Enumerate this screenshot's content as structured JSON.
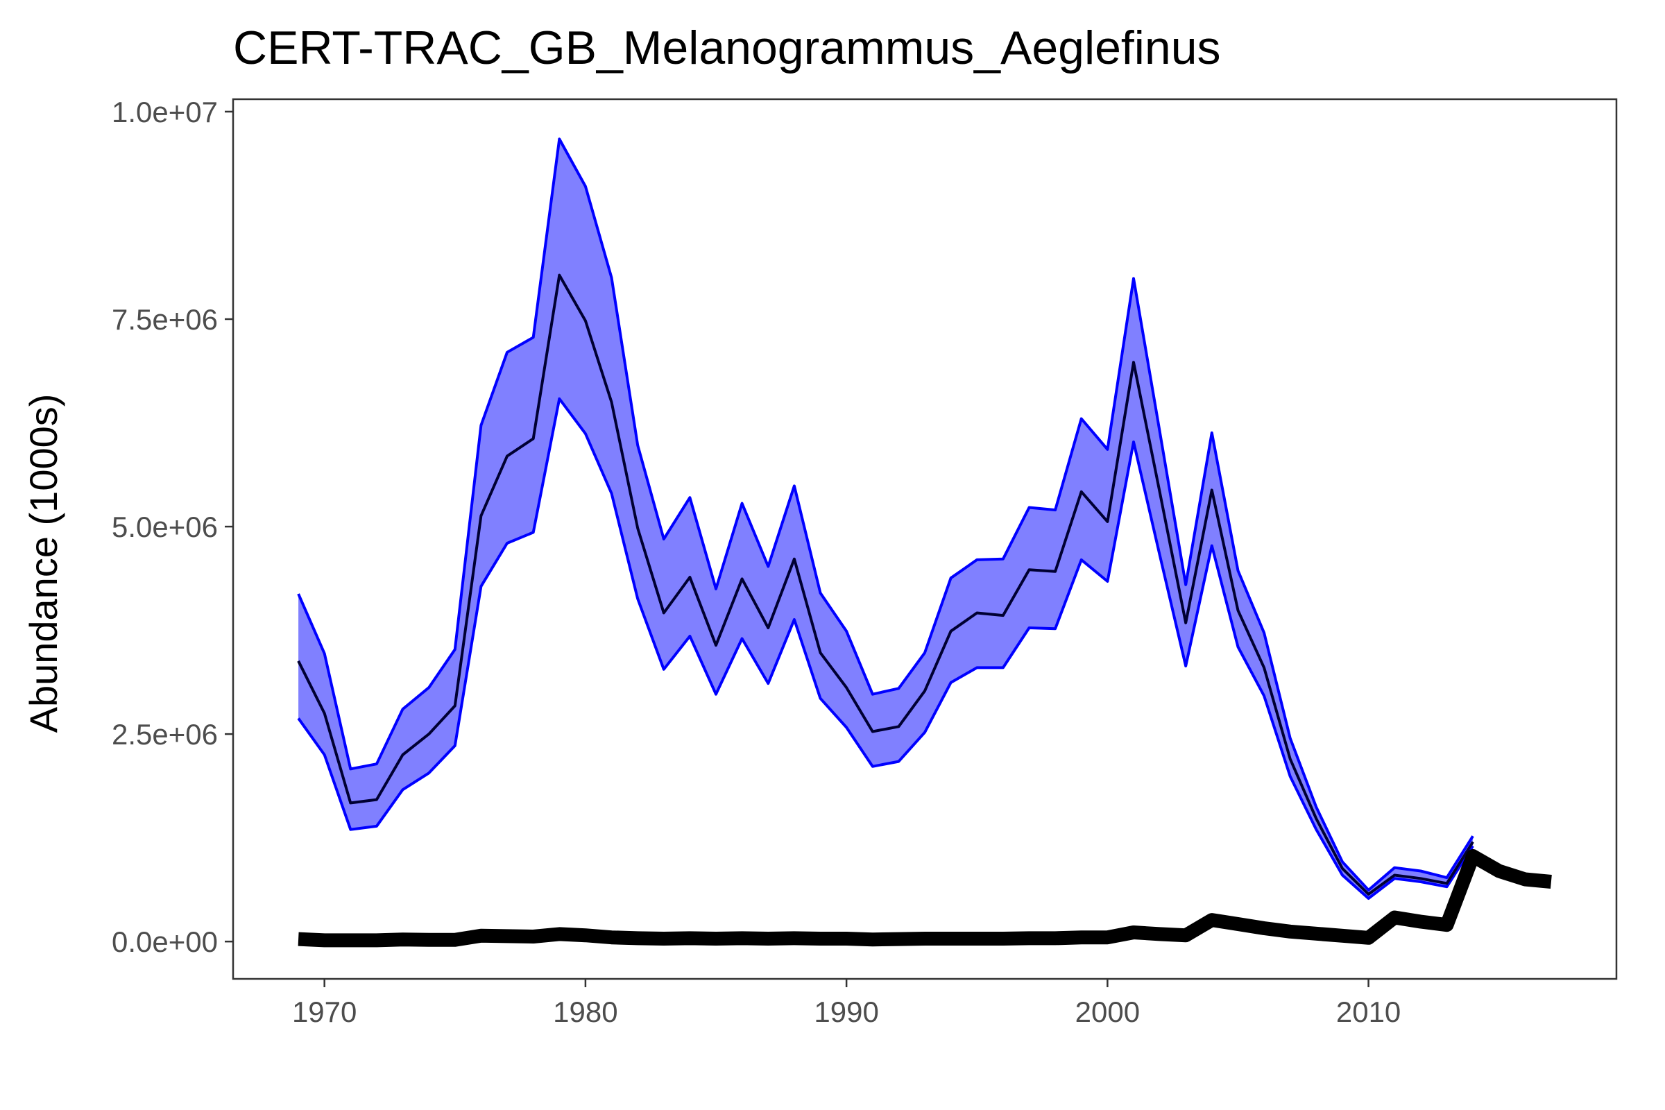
{
  "chart_data": {
    "type": "line",
    "title": "CERT-TRAC_GB_Melanogrammus_Aeglefinus",
    "xlabel": "",
    "ylabel": "Abundance (1000s)",
    "xlim": [
      1966.5,
      2019.5
    ],
    "ylim": [
      -450000,
      10150000
    ],
    "x_ticks": [
      1970,
      1980,
      1990,
      2000,
      2010
    ],
    "x_tick_labels": [
      "1970",
      "1980",
      "1990",
      "2000",
      "2010"
    ],
    "y_ticks": [
      0,
      2500000,
      5000000,
      7500000,
      10000000
    ],
    "y_tick_labels": [
      "0.0e+00",
      "2.5e+06",
      "5.0e+06",
      "7.5e+06",
      "1.0e+07"
    ],
    "grid": false,
    "legend": "none",
    "colors": {
      "band_fill": "#8080ff",
      "band_edge": "#0000ff",
      "estimate_line": "#000033",
      "catch_line": "#000000",
      "panel_border": "#333333",
      "tick_label": "#4d4d4d"
    },
    "series": [
      {
        "role": "estimate",
        "x": [
          1969,
          1970,
          1971,
          1972,
          1973,
          1974,
          1975,
          1976,
          1977,
          1978,
          1979,
          1980,
          1981,
          1982,
          1983,
          1984,
          1985,
          1986,
          1987,
          1988,
          1989,
          1990,
          1991,
          1992,
          1993,
          1994,
          1995,
          1996,
          1997,
          1998,
          1999,
          2000,
          2001,
          2002,
          2003,
          2004,
          2005,
          2006,
          2007,
          2008,
          2009,
          2010,
          2011,
          2012,
          2013,
          2014
        ],
        "y": [
          3380000,
          2750000,
          1670000,
          1710000,
          2250000,
          2500000,
          2840000,
          5130000,
          5850000,
          6060000,
          8030000,
          7480000,
          6500000,
          4980000,
          3960000,
          4390000,
          3570000,
          4370000,
          3780000,
          4610000,
          3480000,
          3060000,
          2530000,
          2590000,
          3020000,
          3740000,
          3960000,
          3930000,
          4480000,
          4460000,
          5420000,
          5060000,
          6980000,
          5420000,
          3840000,
          5440000,
          3990000,
          3300000,
          2200000,
          1480000,
          880000,
          570000,
          800000,
          760000,
          700000,
          1200000
        ]
      },
      {
        "role": "lower",
        "x": [
          1969,
          1970,
          1971,
          1972,
          1973,
          1974,
          1975,
          1976,
          1977,
          1978,
          1979,
          1980,
          1981,
          1982,
          1983,
          1984,
          1985,
          1986,
          1987,
          1988,
          1989,
          1990,
          1991,
          1992,
          1993,
          1994,
          1995,
          1996,
          1997,
          1998,
          1999,
          2000,
          2001,
          2002,
          2003,
          2004,
          2005,
          2006,
          2007,
          2008,
          2009,
          2010,
          2011,
          2012,
          2013,
          2014
        ],
        "y": [
          2690000,
          2250000,
          1350000,
          1390000,
          1830000,
          2030000,
          2360000,
          4280000,
          4800000,
          4930000,
          6540000,
          6120000,
          5400000,
          4130000,
          3280000,
          3680000,
          2980000,
          3650000,
          3110000,
          3880000,
          2930000,
          2580000,
          2110000,
          2170000,
          2520000,
          3120000,
          3300000,
          3300000,
          3780000,
          3770000,
          4600000,
          4340000,
          6020000,
          4660000,
          3320000,
          4770000,
          3550000,
          2960000,
          1990000,
          1350000,
          800000,
          520000,
          760000,
          720000,
          660000,
          1150000
        ]
      },
      {
        "role": "upper",
        "x": [
          1969,
          1970,
          1971,
          1972,
          1973,
          1974,
          1975,
          1976,
          1977,
          1978,
          1979,
          1980,
          1981,
          1982,
          1983,
          1984,
          1985,
          1986,
          1987,
          1988,
          1989,
          1990,
          1991,
          1992,
          1993,
          1994,
          1995,
          1996,
          1997,
          1998,
          1999,
          2000,
          2001,
          2002,
          2003,
          2004,
          2005,
          2006,
          2007,
          2008,
          2009,
          2010,
          2011,
          2012,
          2013,
          2014
        ],
        "y": [
          4190000,
          3470000,
          2080000,
          2140000,
          2800000,
          3060000,
          3520000,
          6220000,
          7100000,
          7280000,
          9670000,
          9100000,
          8000000,
          5980000,
          4850000,
          5350000,
          4250000,
          5280000,
          4520000,
          5490000,
          4200000,
          3740000,
          2980000,
          3050000,
          3480000,
          4380000,
          4600000,
          4610000,
          5230000,
          5200000,
          6300000,
          5930000,
          7990000,
          6150000,
          4300000,
          6130000,
          4470000,
          3720000,
          2450000,
          1620000,
          960000,
          620000,
          890000,
          850000,
          770000,
          1270000
        ]
      },
      {
        "role": "catch",
        "x": [
          1969,
          1970,
          1971,
          1972,
          1973,
          1974,
          1975,
          1976,
          1977,
          1978,
          1979,
          1980,
          1981,
          1982,
          1983,
          1984,
          1985,
          1986,
          1987,
          1988,
          1989,
          1990,
          1991,
          1992,
          1993,
          1994,
          1995,
          1996,
          1997,
          1998,
          1999,
          2000,
          2001,
          2002,
          2003,
          2004,
          2005,
          2006,
          2007,
          2008,
          2009,
          2010,
          2011,
          2012,
          2013,
          2014,
          2015,
          2016,
          2017
        ],
        "y": [
          30000,
          15000,
          15000,
          15000,
          25000,
          20000,
          20000,
          70000,
          65000,
          60000,
          90000,
          75000,
          50000,
          40000,
          35000,
          40000,
          35000,
          40000,
          35000,
          40000,
          35000,
          35000,
          25000,
          30000,
          35000,
          35000,
          35000,
          35000,
          40000,
          40000,
          50000,
          50000,
          110000,
          90000,
          75000,
          260000,
          210000,
          160000,
          120000,
          95000,
          70000,
          45000,
          290000,
          240000,
          200000,
          1030000,
          850000,
          750000,
          720000
        ]
      }
    ]
  }
}
